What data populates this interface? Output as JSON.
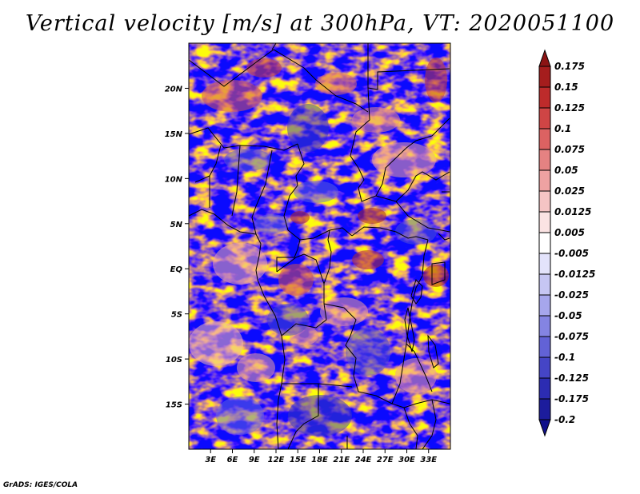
{
  "title": "Vertical velocity [m/s] at 300hPa, VT: 2020051100",
  "credit": "GrADS: IGES/COLA",
  "map": {
    "lon_range": [
      0,
      36
    ],
    "lat_range": [
      -20,
      25
    ],
    "lat_ticks": [
      {
        "v": 20,
        "label": "20N"
      },
      {
        "v": 15,
        "label": "15N"
      },
      {
        "v": 10,
        "label": "10N"
      },
      {
        "v": 5,
        "label": "5N"
      },
      {
        "v": 0,
        "label": "EQ"
      },
      {
        "v": -5,
        "label": "5S"
      },
      {
        "v": -10,
        "label": "10S"
      },
      {
        "v": -15,
        "label": "15S"
      }
    ],
    "lon_ticks": [
      {
        "v": 3,
        "label": "3E"
      },
      {
        "v": 6,
        "label": "6E"
      },
      {
        "v": 9,
        "label": "9E"
      },
      {
        "v": 12,
        "label": "12E"
      },
      {
        "v": 15,
        "label": "15E"
      },
      {
        "v": 18,
        "label": "18E"
      },
      {
        "v": 21,
        "label": "21E"
      },
      {
        "v": 24,
        "label": "24E"
      },
      {
        "v": 27,
        "label": "27E"
      },
      {
        "v": 30,
        "label": "30E"
      },
      {
        "v": 33,
        "label": "33E"
      }
    ]
  },
  "colorbar": {
    "levels": [
      "0.175",
      "0.15",
      "0.125",
      "0.1",
      "0.075",
      "0.05",
      "0.025",
      "0.0125",
      "0.005",
      "-0.005",
      "-0.0125",
      "-0.025",
      "-0.05",
      "-0.075",
      "-0.1",
      "-0.125",
      "-0.175",
      "-0.2"
    ],
    "colors": [
      "#8b1414",
      "#a51d1d",
      "#bd2b2b",
      "#cf4545",
      "#dc6262",
      "#e58282",
      "#eea2a2",
      "#f5c4c4",
      "#fbe3e3",
      "#ffffff",
      "#e3e3fb",
      "#c6c6f3",
      "#a6a6ec",
      "#8484e2",
      "#6262d6",
      "#4545c6",
      "#2c2cb2",
      "#1c1c9c",
      "#10108a"
    ]
  }
}
